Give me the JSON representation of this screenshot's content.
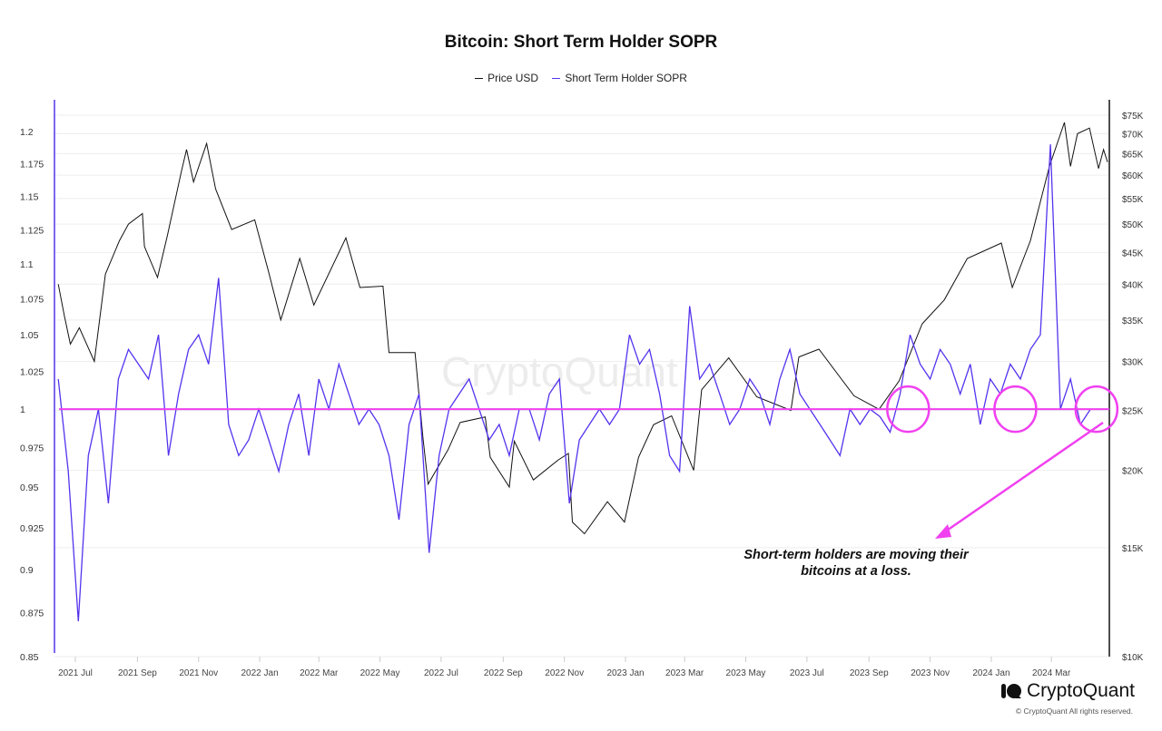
{
  "chart_data": {
    "type": "line",
    "title": "Bitcoin: Short Term Holder SOPR",
    "legend": [
      {
        "name": "Price USD",
        "color": "#111111"
      },
      {
        "name": "Short Term Holder SOPR",
        "color": "#5533ee"
      }
    ],
    "legend_placement": "top-center",
    "left_axis": {
      "scale": "log",
      "ylim": [
        0.85,
        1.2
      ],
      "ticks": [
        "0.85",
        "0.875",
        "0.9",
        "0.925",
        "0.95",
        "0.975",
        "1",
        "1.025",
        "1.05",
        "1.075",
        "1.1",
        "1.125",
        "1.15",
        "1.175",
        "1.2"
      ]
    },
    "right_axis": {
      "scale": "log",
      "ylim": [
        10000,
        75000
      ],
      "ticks": [
        {
          "v": 10000,
          "l": "$10K"
        },
        {
          "v": 15000,
          "l": "$15K"
        },
        {
          "v": 20000,
          "l": "$20K"
        },
        {
          "v": 25000,
          "l": "$25K"
        },
        {
          "v": 30000,
          "l": "$30K"
        },
        {
          "v": 35000,
          "l": "$35K"
        },
        {
          "v": 40000,
          "l": "$40K"
        },
        {
          "v": 45000,
          "l": "$45K"
        },
        {
          "v": 50000,
          "l": "$50K"
        },
        {
          "v": 55000,
          "l": "$55K"
        },
        {
          "v": 60000,
          "l": "$60K"
        },
        {
          "v": 65000,
          "l": "$65K"
        },
        {
          "v": 70000,
          "l": "$70K"
        },
        {
          "v": 75000,
          "l": "$75K"
        }
      ]
    },
    "xlim": [
      "2021-06-12",
      "2024-04-26"
    ],
    "x_ticks": [
      {
        "d": "2021-07-01",
        "l": "2021 Jul"
      },
      {
        "d": "2021-09-01",
        "l": "2021 Sep"
      },
      {
        "d": "2021-11-01",
        "l": "2021 Nov"
      },
      {
        "d": "2022-01-01",
        "l": "2022 Jan"
      },
      {
        "d": "2022-03-01",
        "l": "2022 Mar"
      },
      {
        "d": "2022-05-01",
        "l": "2022 May"
      },
      {
        "d": "2022-07-01",
        "l": "2022 Jul"
      },
      {
        "d": "2022-09-01",
        "l": "2022 Sep"
      },
      {
        "d": "2022-11-01",
        "l": "2022 Nov"
      },
      {
        "d": "2023-01-01",
        "l": "2023 Jan"
      },
      {
        "d": "2023-03-01",
        "l": "2023 Mar"
      },
      {
        "d": "2023-05-01",
        "l": "2023 May"
      },
      {
        "d": "2023-07-01",
        "l": "2023 Jul"
      },
      {
        "d": "2023-09-01",
        "l": "2023 Sep"
      },
      {
        "d": "2023-11-01",
        "l": "2023 Nov"
      },
      {
        "d": "2024-01-01",
        "l": "2024 Jan"
      },
      {
        "d": "2024-03-01",
        "l": "2024 Mar"
      }
    ],
    "price_series": [
      [
        "2021-06-14",
        40000
      ],
      [
        "2021-06-20",
        35600
      ],
      [
        "2021-06-26",
        32000
      ],
      [
        "2021-07-05",
        34000
      ],
      [
        "2021-07-20",
        30000
      ],
      [
        "2021-07-31",
        41500
      ],
      [
        "2021-08-14",
        47000
      ],
      [
        "2021-08-23",
        50000
      ],
      [
        "2021-09-06",
        52000
      ],
      [
        "2021-09-08",
        46000
      ],
      [
        "2021-09-21",
        41000
      ],
      [
        "2021-10-01",
        48000
      ],
      [
        "2021-10-15",
        61000
      ],
      [
        "2021-10-20",
        66000
      ],
      [
        "2021-10-27",
        58500
      ],
      [
        "2021-11-09",
        67500
      ],
      [
        "2021-11-18",
        57000
      ],
      [
        "2021-12-04",
        49000
      ],
      [
        "2021-12-27",
        50800
      ],
      [
        "2022-01-10",
        41800
      ],
      [
        "2022-01-22",
        35000
      ],
      [
        "2022-02-10",
        44000
      ],
      [
        "2022-02-24",
        37000
      ],
      [
        "2022-03-28",
        47500
      ],
      [
        "2022-04-11",
        39500
      ],
      [
        "2022-05-04",
        39700
      ],
      [
        "2022-05-10",
        31000
      ],
      [
        "2022-06-05",
        31000
      ],
      [
        "2022-06-13",
        22500
      ],
      [
        "2022-06-18",
        19000
      ],
      [
        "2022-07-08",
        21600
      ],
      [
        "2022-07-20",
        23900
      ],
      [
        "2022-08-14",
        24400
      ],
      [
        "2022-08-19",
        21000
      ],
      [
        "2022-09-07",
        18800
      ],
      [
        "2022-09-12",
        22300
      ],
      [
        "2022-10-01",
        19300
      ],
      [
        "2022-10-26",
        20800
      ],
      [
        "2022-11-05",
        21300
      ],
      [
        "2022-11-09",
        16500
      ],
      [
        "2022-11-21",
        15800
      ],
      [
        "2022-12-14",
        17800
      ],
      [
        "2022-12-31",
        16500
      ],
      [
        "2023-01-14",
        21000
      ],
      [
        "2023-01-29",
        23700
      ],
      [
        "2023-02-16",
        24500
      ],
      [
        "2023-03-10",
        20000
      ],
      [
        "2023-03-18",
        27000
      ],
      [
        "2023-04-14",
        30400
      ],
      [
        "2023-05-12",
        26300
      ],
      [
        "2023-06-15",
        25000
      ],
      [
        "2023-06-23",
        30500
      ],
      [
        "2023-07-13",
        31400
      ],
      [
        "2023-08-17",
        26400
      ],
      [
        "2023-09-11",
        25100
      ],
      [
        "2023-10-01",
        27900
      ],
      [
        "2023-10-24",
        34500
      ],
      [
        "2023-11-15",
        37700
      ],
      [
        "2023-12-08",
        44000
      ],
      [
        "2024-01-11",
        46600
      ],
      [
        "2024-01-22",
        39500
      ],
      [
        "2024-02-09",
        47000
      ],
      [
        "2024-02-28",
        62000
      ],
      [
        "2024-03-14",
        73000
      ],
      [
        "2024-03-20",
        62000
      ],
      [
        "2024-03-27",
        70000
      ],
      [
        "2024-04-08",
        71500
      ],
      [
        "2024-04-17",
        61500
      ],
      [
        "2024-04-22",
        66000
      ],
      [
        "2024-04-26",
        63000
      ]
    ],
    "sopr_series": {
      "start": "2021-06-14",
      "step_days": 10,
      "values": [
        1.02,
        0.96,
        0.87,
        0.97,
        1.0,
        0.94,
        1.02,
        1.04,
        1.03,
        1.02,
        1.05,
        0.97,
        1.01,
        1.04,
        1.05,
        1.03,
        1.09,
        0.99,
        0.97,
        0.98,
        1.0,
        0.98,
        0.96,
        0.99,
        1.01,
        0.97,
        1.02,
        1.0,
        1.03,
        1.01,
        0.99,
        1.0,
        0.99,
        0.97,
        0.93,
        0.99,
        1.01,
        0.91,
        0.97,
        1.0,
        1.01,
        1.02,
        1.0,
        0.98,
        0.99,
        0.97,
        1.0,
        1.0,
        0.98,
        1.01,
        1.02,
        0.94,
        0.98,
        0.99,
        1.0,
        0.99,
        1.0,
        1.05,
        1.03,
        1.04,
        1.01,
        0.97,
        0.96,
        1.07,
        1.02,
        1.03,
        1.01,
        0.99,
        1.0,
        1.02,
        1.01,
        0.99,
        1.02,
        1.04,
        1.01,
        1.0,
        0.99,
        0.98,
        0.97,
        1.0,
        0.99,
        1.0,
        0.995,
        0.985,
        1.01,
        1.05,
        1.03,
        1.02,
        1.04,
        1.03,
        1.01,
        1.03,
        0.99,
        1.02,
        1.01,
        1.03,
        1.02,
        1.04,
        1.05,
        1.19,
        1.0,
        1.02,
        0.99,
        1.0
      ]
    },
    "reference_line": {
      "value": 1,
      "color": "#f040f0"
    },
    "annotation": {
      "text_line1": "Short-term holders are moving their",
      "text_line2": "bitcoins at a loss.",
      "highlight_dates": [
        "2023-10-10",
        "2024-01-25",
        "2024-04-15"
      ],
      "color": "#f040f0"
    }
  },
  "watermark": "CryptoQuant",
  "footer": {
    "brand": "CryptoQuant",
    "copyright": "© CryptoQuant All rights reserved."
  }
}
